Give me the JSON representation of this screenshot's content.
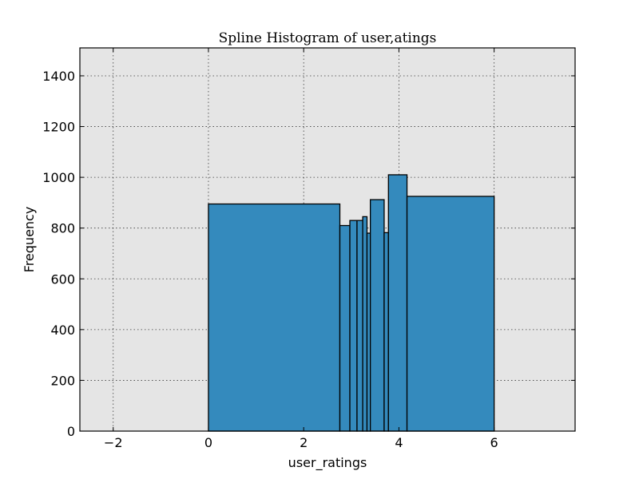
{
  "chart_data": {
    "type": "bar",
    "title": "Spline Histogram of user,atings",
    "xlabel": "user_ratings",
    "ylabel": "Frequency",
    "xlim": [
      -2.7,
      7.7
    ],
    "ylim": [
      0,
      1510
    ],
    "xticks": [
      -2,
      0,
      2,
      4,
      6
    ],
    "xtick_labels": [
      "−2",
      "0",
      "2",
      "4",
      "6"
    ],
    "yticks": [
      0,
      200,
      400,
      600,
      800,
      1000,
      1200,
      1400
    ],
    "ytick_labels": [
      "0",
      "200",
      "400",
      "600",
      "800",
      "1000",
      "1200",
      "1400"
    ],
    "grid": true,
    "colors": {
      "bar": "#348ABD",
      "plot_background": "#E5E5E5"
    },
    "bins": [
      {
        "x0": 0.0,
        "x1": 2.76,
        "value": 895
      },
      {
        "x0": 2.76,
        "x1": 2.97,
        "value": 810
      },
      {
        "x0": 2.97,
        "x1": 3.12,
        "value": 830
      },
      {
        "x0": 3.12,
        "x1": 3.24,
        "value": 830
      },
      {
        "x0": 3.24,
        "x1": 3.33,
        "value": 845
      },
      {
        "x0": 3.33,
        "x1": 3.4,
        "value": 780
      },
      {
        "x0": 3.4,
        "x1": 3.69,
        "value": 912
      },
      {
        "x0": 3.69,
        "x1": 3.78,
        "value": 782
      },
      {
        "x0": 3.78,
        "x1": 4.17,
        "value": 1010
      },
      {
        "x0": 4.17,
        "x1": 6.0,
        "value": 925
      }
    ]
  }
}
